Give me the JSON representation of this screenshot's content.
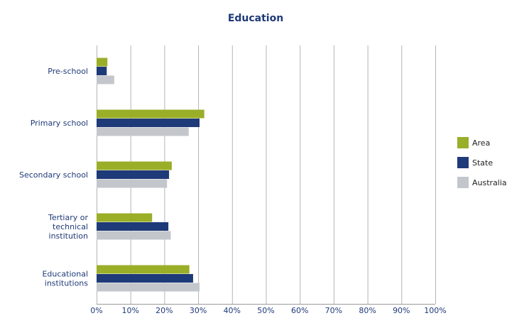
{
  "chart_data": {
    "type": "bar",
    "orientation": "horizontal",
    "title": "Education",
    "categories": [
      [
        "Pre-school"
      ],
      [
        "Primary school"
      ],
      [
        "Secondary school"
      ],
      [
        "Tertiary or",
        "technical",
        "institution"
      ],
      [
        "Educational",
        "institutions"
      ]
    ],
    "series": [
      {
        "name": "Area",
        "color": "#9aae28",
        "values": [
          3.2,
          31.8,
          22.2,
          16.4,
          27.4
        ]
      },
      {
        "name": "State",
        "color": "#1f3a78",
        "values": [
          3.0,
          30.4,
          21.4,
          21.2,
          28.5
        ]
      },
      {
        "name": "Australia",
        "color": "#c3c6cb",
        "values": [
          5.2,
          27.2,
          20.8,
          21.9,
          30.4
        ]
      }
    ],
    "x_ticks": [
      "0%",
      "10%",
      "20%",
      "30%",
      "40%",
      "50%",
      "60%",
      "70%",
      "80%",
      "90%",
      "100%"
    ],
    "xlim": [
      0,
      100
    ],
    "grid": true,
    "legend_position": "right"
  }
}
